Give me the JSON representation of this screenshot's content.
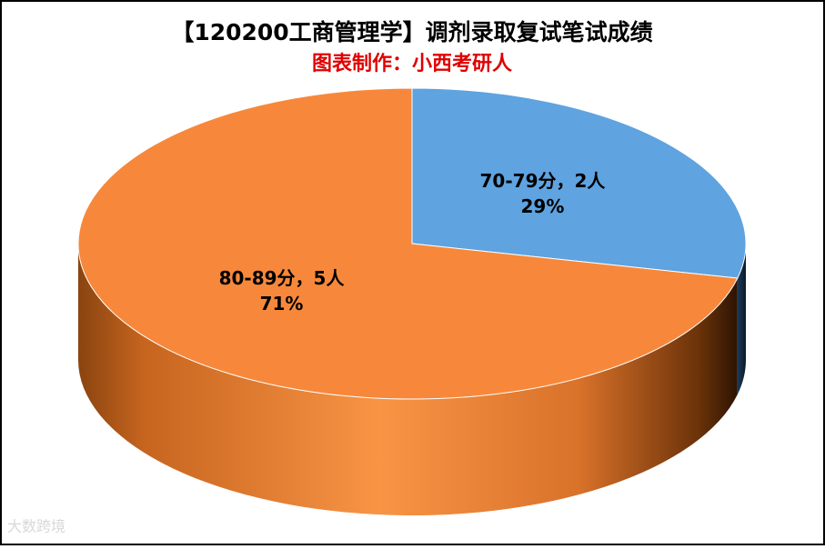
{
  "chart_data": {
    "type": "pie3d",
    "title": "【120200工商管理学】调剂录取复试笔试成绩",
    "subtitle": "图表制作：小西考研人",
    "categories": [
      "70-79分",
      "80-89分"
    ],
    "values": [
      2,
      5
    ],
    "value_labels": [
      "70-79分，2人",
      "80-89分，5人"
    ],
    "percents": [
      29,
      71
    ],
    "percent_labels": [
      "29%",
      "71%"
    ],
    "colors": [
      "#5fa3e0",
      "#f7883b"
    ],
    "watermark": "大数跨境"
  }
}
